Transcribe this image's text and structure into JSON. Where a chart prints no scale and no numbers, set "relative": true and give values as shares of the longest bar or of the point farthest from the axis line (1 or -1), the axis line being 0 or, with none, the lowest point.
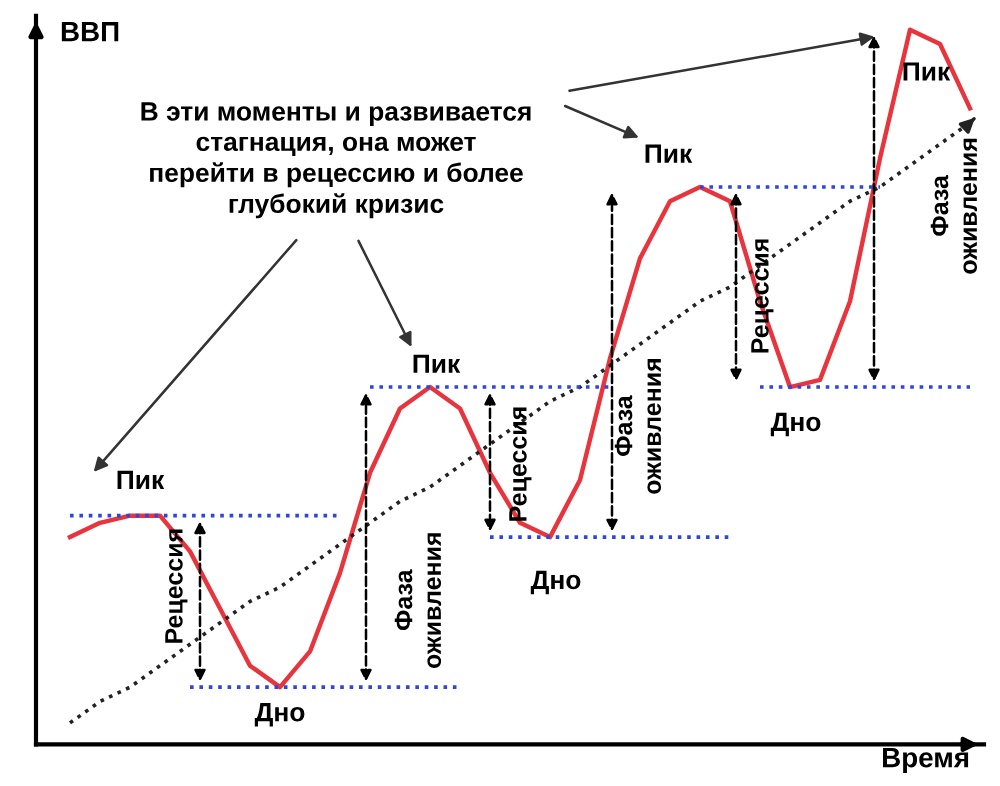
{
  "chart_data": {
    "type": "line",
    "relative": true,
    "xlabel": "Время",
    "ylabel": "ВВП",
    "categories": [
      null,
      null,
      null,
      null,
      null,
      null,
      null,
      null,
      null,
      null,
      null,
      null,
      null,
      null,
      null,
      null,
      null,
      null,
      null,
      null,
      null,
      null,
      null,
      null,
      null,
      null,
      null,
      null,
      null,
      null,
      null
    ],
    "series": [
      {
        "color": "#e8343c",
        "line_style": "solid",
        "values": [
          0.29,
          0.31,
          0.32,
          0.32,
          0.27,
          0.19,
          0.11,
          0.08,
          0.13,
          0.24,
          0.38,
          0.47,
          0.5,
          0.47,
          0.38,
          0.31,
          0.29,
          0.37,
          0.54,
          0.68,
          0.76,
          0.78,
          0.76,
          0.62,
          0.5,
          0.51,
          0.62,
          0.82,
          1,
          0.98,
          0.89
        ]
      },
      {
        "color": "#222222",
        "line_style": "dotted",
        "values": [
          0.03,
          0.06,
          0.08,
          0.11,
          0.14,
          0.17,
          0.2,
          0.22,
          0.25,
          0.28,
          0.31,
          0.34,
          0.36,
          0.39,
          0.42,
          0.45,
          0.48,
          0.5,
          0.53,
          0.56,
          0.59,
          0.62,
          0.64,
          0.67,
          0.7,
          0.73,
          0.76,
          0.78,
          0.81,
          0.84,
          0.87
        ]
      },
      {
        "color": "#2f45e0",
        "line_style": "dotted",
        "values": [
          0.32,
          0.32,
          0.32,
          0.32,
          0.32,
          0.32,
          0.32,
          0.32,
          0.32,
          0.32,
          null,
          null,
          null,
          null,
          null,
          null,
          null,
          null,
          null,
          null,
          null,
          null,
          null,
          null,
          null,
          null,
          null,
          null,
          null,
          null,
          null
        ]
      },
      {
        "color": "#2f45e0",
        "line_style": "dotted",
        "values": [
          null,
          null,
          null,
          null,
          0.08,
          0.08,
          0.08,
          0.08,
          0.08,
          0.08,
          0.08,
          0.08,
          0.08,
          0.08,
          null,
          null,
          null,
          null,
          null,
          null,
          null,
          null,
          null,
          null,
          null,
          null,
          null,
          null,
          null,
          null,
          null
        ]
      },
      {
        "color": "#2f45e0",
        "line_style": "dotted",
        "values": [
          null,
          null,
          null,
          null,
          null,
          null,
          null,
          null,
          null,
          null,
          0.5,
          0.5,
          0.5,
          0.5,
          0.5,
          0.5,
          0.5,
          0.5,
          0.5,
          null,
          null,
          null,
          null,
          null,
          null,
          null,
          null,
          null,
          null,
          null,
          null
        ]
      },
      {
        "color": "#2f45e0",
        "line_style": "dotted",
        "values": [
          null,
          null,
          null,
          null,
          null,
          null,
          null,
          null,
          null,
          null,
          null,
          null,
          null,
          null,
          0.29,
          0.29,
          0.29,
          0.29,
          0.29,
          0.29,
          0.29,
          0.29,
          0.29,
          null,
          null,
          null,
          null,
          null,
          null,
          null,
          null
        ]
      },
      {
        "color": "#2f45e0",
        "line_style": "dotted",
        "values": [
          null,
          null,
          null,
          null,
          null,
          null,
          null,
          null,
          null,
          null,
          null,
          null,
          null,
          null,
          null,
          null,
          null,
          null,
          null,
          null,
          null,
          0.78,
          0.78,
          0.78,
          0.78,
          0.78,
          0.78,
          0.78,
          null,
          null,
          null
        ]
      },
      {
        "color": "#2f45e0",
        "line_style": "dotted",
        "values": [
          null,
          null,
          null,
          null,
          null,
          null,
          null,
          null,
          null,
          null,
          null,
          null,
          null,
          null,
          null,
          null,
          null,
          null,
          null,
          null,
          null,
          null,
          null,
          0.5,
          0.5,
          0.5,
          0.5,
          0.5,
          0.5,
          0.5,
          0.5
        ]
      }
    ],
    "annotations": [
      "В эти моменты и развивается\nстагнация, она может\nперейти в рецессию и более\nглубокий кризис",
      "Пик",
      "Пик",
      "Пик",
      "Пик",
      "Дно",
      "Дно",
      "Дно",
      "Рецессия",
      "Рецессия",
      "Рецессия",
      "Фаза\nоживления",
      "Фаза\nоживления",
      "Фаза\nоживления"
    ]
  }
}
